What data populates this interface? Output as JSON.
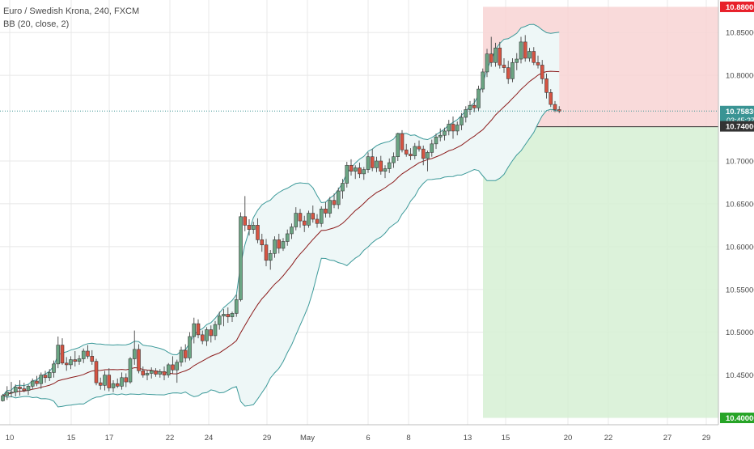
{
  "symbol": {
    "title": "Euro / Swedish Krona, 240, FXCM",
    "indicator": "BB (20, close, 2)"
  },
  "colors": {
    "up": "#6ba583",
    "down": "#d75442",
    "wick": "#555555",
    "bb_band": "#3d9a9a",
    "bb_basis": "#8b1a1a",
    "bb_fill": "#eef7f7",
    "stop_zone": "#f8d4d4",
    "target_zone": "#d6f0d4",
    "grid": "#e8e8e8",
    "axis_text": "#4a4a4a",
    "stop_label": "#e8202a",
    "entry_label": "#333333",
    "target_label": "#27a427",
    "last_label": "#3a9494"
  },
  "chart_data": {
    "type": "candlestick",
    "title": "Euro / Swedish Krona, 240, FXCM",
    "indicator": "BB (20, close, 2)",
    "x_ticks": [
      "10",
      "15",
      "17",
      "22",
      "24",
      "29",
      "May",
      "6",
      "8",
      "13",
      "15",
      "20",
      "22",
      "27",
      "29"
    ],
    "y_ticks": [
      "10.85000",
      "10.80000",
      "10.70000",
      "10.65000",
      "10.60000",
      "10.55000",
      "10.50000",
      "10.45000"
    ],
    "y_tick_values": [
      10.85,
      10.8,
      10.7,
      10.65,
      10.6,
      10.55,
      10.5,
      10.45
    ],
    "ylim": [
      10.392,
      10.888
    ],
    "grid": true,
    "position": {
      "stop_price": "10.88000",
      "stop": 10.88,
      "entry_price": "10.74000",
      "entry": 10.74,
      "target_price": "10.40000",
      "target": 10.4
    },
    "last_price": "10.75830",
    "last": 10.7583,
    "countdown": "03:45:27",
    "candles": [
      [
        10.42,
        10.428,
        10.419,
        10.426
      ],
      [
        10.426,
        10.437,
        10.421,
        10.43
      ],
      [
        10.43,
        10.442,
        10.424,
        10.43
      ],
      [
        10.43,
        10.439,
        10.425,
        10.436
      ],
      [
        10.436,
        10.444,
        10.426,
        10.434
      ],
      [
        10.434,
        10.441,
        10.43,
        10.432
      ],
      [
        10.432,
        10.439,
        10.427,
        10.437
      ],
      [
        10.437,
        10.446,
        10.433,
        10.443
      ],
      [
        10.443,
        10.449,
        10.437,
        10.44
      ],
      [
        10.44,
        10.453,
        10.434,
        10.45
      ],
      [
        10.45,
        10.455,
        10.441,
        10.447
      ],
      [
        10.447,
        10.457,
        10.443,
        10.453
      ],
      [
        10.453,
        10.467,
        10.447,
        10.463
      ],
      [
        10.463,
        10.495,
        10.458,
        10.485
      ],
      [
        10.485,
        10.493,
        10.462,
        10.464
      ],
      [
        10.464,
        10.471,
        10.455,
        10.462
      ],
      [
        10.462,
        10.472,
        10.457,
        10.468
      ],
      [
        10.468,
        10.478,
        10.46,
        10.466
      ],
      [
        10.466,
        10.473,
        10.462,
        10.469
      ],
      [
        10.469,
        10.481,
        10.464,
        10.478
      ],
      [
        10.478,
        10.485,
        10.469,
        10.472
      ],
      [
        10.472,
        10.479,
        10.462,
        10.466
      ],
      [
        10.466,
        10.469,
        10.438,
        10.441
      ],
      [
        10.441,
        10.447,
        10.433,
        10.438
      ],
      [
        10.438,
        10.455,
        10.432,
        10.45
      ],
      [
        10.45,
        10.458,
        10.431,
        10.435
      ],
      [
        10.435,
        10.444,
        10.43,
        10.44
      ],
      [
        10.44,
        10.446,
        10.435,
        10.437
      ],
      [
        10.437,
        10.453,
        10.433,
        10.447
      ],
      [
        10.447,
        10.452,
        10.436,
        10.442
      ],
      [
        10.442,
        10.471,
        10.44,
        10.469
      ],
      [
        10.469,
        10.502,
        10.462,
        10.48
      ],
      [
        10.48,
        10.486,
        10.452,
        10.455
      ],
      [
        10.455,
        10.46,
        10.447,
        10.45
      ],
      [
        10.45,
        10.456,
        10.444,
        10.452
      ],
      [
        10.452,
        10.459,
        10.446,
        10.455
      ],
      [
        10.455,
        10.458,
        10.448,
        10.451
      ],
      [
        10.451,
        10.457,
        10.447,
        10.454
      ],
      [
        10.454,
        10.46,
        10.444,
        10.45
      ],
      [
        10.45,
        10.464,
        10.447,
        10.462
      ],
      [
        10.462,
        10.472,
        10.452,
        10.456
      ],
      [
        10.456,
        10.468,
        10.441,
        10.465
      ],
      [
        10.465,
        10.483,
        10.46,
        10.479
      ],
      [
        10.479,
        10.486,
        10.465,
        10.47
      ],
      [
        10.47,
        10.5,
        10.467,
        10.495
      ],
      [
        10.495,
        10.517,
        10.487,
        10.51
      ],
      [
        10.51,
        10.515,
        10.493,
        10.497
      ],
      [
        10.497,
        10.502,
        10.486,
        10.49
      ],
      [
        10.49,
        10.506,
        10.484,
        10.503
      ],
      [
        10.503,
        10.508,
        10.488,
        10.496
      ],
      [
        10.496,
        10.513,
        10.491,
        10.509
      ],
      [
        10.509,
        10.524,
        10.503,
        10.519
      ],
      [
        10.519,
        10.527,
        10.507,
        10.521
      ],
      [
        10.521,
        10.529,
        10.511,
        10.518
      ],
      [
        10.518,
        10.524,
        10.512,
        10.522
      ],
      [
        10.522,
        10.544,
        10.518,
        10.538
      ],
      [
        10.538,
        10.64,
        10.536,
        10.635
      ],
      [
        10.635,
        10.659,
        10.618,
        10.625
      ],
      [
        10.625,
        10.632,
        10.613,
        10.62
      ],
      [
        10.62,
        10.629,
        10.615,
        10.625
      ],
      [
        10.625,
        10.633,
        10.604,
        10.608
      ],
      [
        10.608,
        10.615,
        10.594,
        10.602
      ],
      [
        10.602,
        10.609,
        10.577,
        10.584
      ],
      [
        10.584,
        10.596,
        10.573,
        10.592
      ],
      [
        10.592,
        10.612,
        10.587,
        10.608
      ],
      [
        10.608,
        10.615,
        10.592,
        10.598
      ],
      [
        10.598,
        10.61,
        10.595,
        10.606
      ],
      [
        10.606,
        10.62,
        10.601,
        10.615
      ],
      [
        10.615,
        10.627,
        10.609,
        10.623
      ],
      [
        10.623,
        10.646,
        10.619,
        10.639
      ],
      [
        10.639,
        10.644,
        10.622,
        10.63
      ],
      [
        10.63,
        10.636,
        10.617,
        10.625
      ],
      [
        10.625,
        10.642,
        10.622,
        10.639
      ],
      [
        10.639,
        10.648,
        10.628,
        10.632
      ],
      [
        10.632,
        10.638,
        10.622,
        10.627
      ],
      [
        10.627,
        10.647,
        10.623,
        10.644
      ],
      [
        10.644,
        10.652,
        10.634,
        10.639
      ],
      [
        10.639,
        10.658,
        10.634,
        10.654
      ],
      [
        10.654,
        10.662,
        10.645,
        10.649
      ],
      [
        10.649,
        10.669,
        10.644,
        10.665
      ],
      [
        10.665,
        10.679,
        10.656,
        10.674
      ],
      [
        10.674,
        10.699,
        10.669,
        10.695
      ],
      [
        10.695,
        10.702,
        10.683,
        10.688
      ],
      [
        10.688,
        10.695,
        10.679,
        10.692
      ],
      [
        10.692,
        10.698,
        10.68,
        10.685
      ],
      [
        10.685,
        10.693,
        10.678,
        10.69
      ],
      [
        10.69,
        10.71,
        10.686,
        10.705
      ],
      [
        10.705,
        10.714,
        10.688,
        10.692
      ],
      [
        10.692,
        10.705,
        10.687,
        10.7
      ],
      [
        10.7,
        10.706,
        10.684,
        10.688
      ],
      [
        10.688,
        10.695,
        10.68,
        10.691
      ],
      [
        10.691,
        10.703,
        10.686,
        10.698
      ],
      [
        10.698,
        10.71,
        10.692,
        10.705
      ],
      [
        10.705,
        10.733,
        10.7,
        10.732
      ],
      [
        10.732,
        10.736,
        10.71,
        10.713
      ],
      [
        10.713,
        10.72,
        10.705,
        10.708
      ],
      [
        10.708,
        10.715,
        10.701,
        10.706
      ],
      [
        10.706,
        10.721,
        10.702,
        10.717
      ],
      [
        10.717,
        10.724,
        10.711,
        10.714
      ],
      [
        10.714,
        10.718,
        10.695,
        10.703
      ],
      [
        10.703,
        10.712,
        10.688,
        10.71
      ],
      [
        10.71,
        10.725,
        10.705,
        10.72
      ],
      [
        10.72,
        10.732,
        10.714,
        10.728
      ],
      [
        10.728,
        10.738,
        10.723,
        10.73
      ],
      [
        10.73,
        10.739,
        10.724,
        10.735
      ],
      [
        10.735,
        10.748,
        10.73,
        10.743
      ],
      [
        10.743,
        10.752,
        10.726,
        10.735
      ],
      [
        10.735,
        10.746,
        10.73,
        10.742
      ],
      [
        10.742,
        10.756,
        10.736,
        10.751
      ],
      [
        10.751,
        10.764,
        10.745,
        10.76
      ],
      [
        10.76,
        10.77,
        10.754,
        10.765
      ],
      [
        10.765,
        10.773,
        10.757,
        10.762
      ],
      [
        10.762,
        10.788,
        10.758,
        10.784
      ],
      [
        10.784,
        10.808,
        10.78,
        10.804
      ],
      [
        10.804,
        10.831,
        10.798,
        10.825
      ],
      [
        10.825,
        10.845,
        10.81,
        10.815
      ],
      [
        10.815,
        10.838,
        10.81,
        10.832
      ],
      [
        10.832,
        10.839,
        10.808,
        10.812
      ],
      [
        10.812,
        10.82,
        10.803,
        10.809
      ],
      [
        10.809,
        10.817,
        10.79,
        10.796
      ],
      [
        10.796,
        10.82,
        10.792,
        10.815
      ],
      [
        10.815,
        10.826,
        10.806,
        10.819
      ],
      [
        10.819,
        10.845,
        10.814,
        10.839
      ],
      [
        10.839,
        10.847,
        10.816,
        10.82
      ],
      [
        10.82,
        10.832,
        10.816,
        10.828
      ],
      [
        10.828,
        10.833,
        10.812,
        10.815
      ],
      [
        10.815,
        10.823,
        10.808,
        10.812
      ],
      [
        10.812,
        10.818,
        10.79,
        10.796
      ],
      [
        10.796,
        10.802,
        10.773,
        10.78
      ],
      [
        10.78,
        10.784,
        10.763,
        10.766
      ],
      [
        10.766,
        10.77,
        10.757,
        10.76
      ],
      [
        10.76,
        10.764,
        10.756,
        10.7583
      ]
    ]
  }
}
